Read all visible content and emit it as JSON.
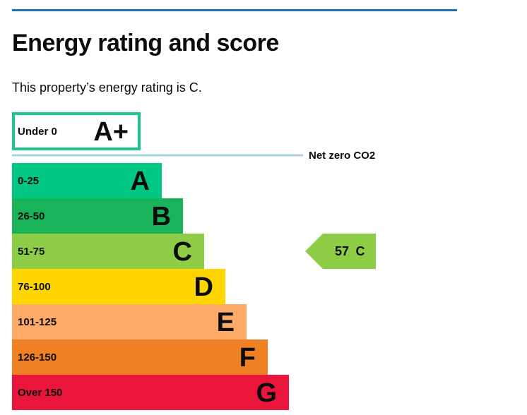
{
  "page": {
    "title": "Energy rating and score",
    "lede": "This property’s energy rating is C."
  },
  "colors": {
    "rule": "#1d70b8",
    "net_zero_line": "#a9d3e0",
    "top_band_border": "#19c88a"
  },
  "chart_data": {
    "type": "bar",
    "title": "",
    "bands": [
      {
        "range": "Under 0",
        "letter": "A+",
        "level": 0,
        "color": "#ffffff",
        "outlined": true
      },
      {
        "range": "0-25",
        "letter": "A",
        "level": 1,
        "color": "#00c781"
      },
      {
        "range": "26-50",
        "letter": "B",
        "level": 2,
        "color": "#19b459"
      },
      {
        "range": "51-75",
        "letter": "C",
        "level": 3,
        "color": "#8dce46"
      },
      {
        "range": "76-100",
        "letter": "D",
        "level": 4,
        "color": "#ffd500"
      },
      {
        "range": "101-125",
        "letter": "E",
        "level": 5,
        "color": "#fcaa65"
      },
      {
        "range": "126-150",
        "letter": "F",
        "level": 6,
        "color": "#ef8023"
      },
      {
        "range": "Over 150",
        "letter": "G",
        "level": 7,
        "color": "#e9153b"
      }
    ],
    "net_zero_label": "Net zero CO2",
    "current": {
      "score": "57",
      "letter": "C",
      "band_index": 3,
      "color": "#8dce46"
    }
  }
}
